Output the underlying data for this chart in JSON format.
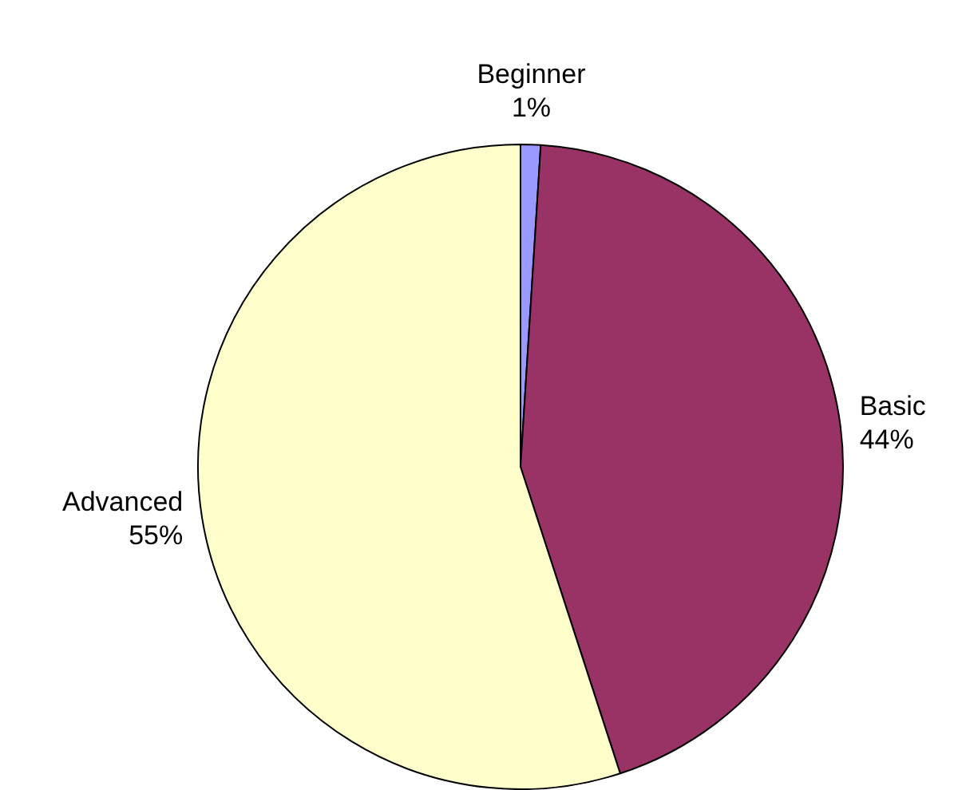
{
  "chart_data": {
    "type": "pie",
    "categories": [
      "Beginner",
      "Basic",
      "Advanced"
    ],
    "values": [
      1,
      44,
      55
    ],
    "colors": [
      "#9999ff",
      "#993366",
      "#ffffcc"
    ],
    "value_labels": [
      "1%",
      "44%",
      "55%"
    ],
    "legend": false
  }
}
